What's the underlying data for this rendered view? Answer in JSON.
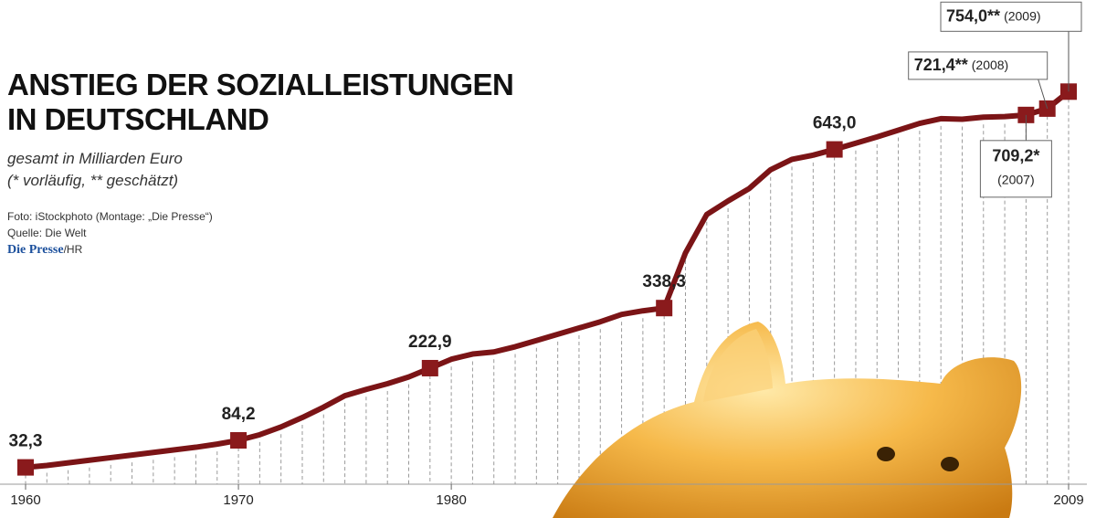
{
  "chart_data": {
    "type": "line",
    "title": [
      "ANSTIEG DER SOZIALLEISTUNGEN",
      "IN DEUTSCHLAND"
    ],
    "subtitle": [
      "gesamt in Milliarden Euro",
      "(* vorläufig, ** geschätzt)"
    ],
    "credits": [
      "Foto: iStockphoto (Montage: „Die Presse“)",
      "Quelle: Die Welt"
    ],
    "brand": "Die Presse",
    "brand_suffix": "/HR",
    "x": [
      1960,
      1961,
      1962,
      1963,
      1964,
      1965,
      1966,
      1967,
      1968,
      1969,
      1970,
      1971,
      1972,
      1973,
      1974,
      1975,
      1976,
      1977,
      1978,
      1979,
      1980,
      1981,
      1982,
      1983,
      1984,
      1985,
      1986,
      1987,
      1988,
      1989,
      1990,
      1991,
      1992,
      1993,
      1994,
      1995,
      1996,
      1997,
      1998,
      1999,
      2000,
      2001,
      2002,
      2003,
      2004,
      2005,
      2006,
      2007,
      2008,
      2009
    ],
    "series": [
      {
        "color": "#7b1416",
        "values": [
          32.3,
          36,
          41,
          46,
          51,
          56,
          61,
          66,
          71,
          77,
          84.2,
          95,
          110,
          128,
          148,
          170,
          182,
          193,
          206,
          222.9,
          240,
          250,
          254,
          264,
          276,
          288,
          300,
          312,
          326,
          333,
          338.3,
          444,
          518,
          544,
          568,
          604,
          624,
          632,
          643.0,
          655,
          667,
          680,
          693,
          702,
          701,
          705,
          706,
          709.2,
          721.4,
          754.0
        ],
        "value_labels": [
          "32,3",
          null,
          null,
          null,
          null,
          null,
          null,
          null,
          null,
          null,
          "84,2",
          null,
          null,
          null,
          null,
          null,
          null,
          null,
          null,
          "222,9",
          null,
          null,
          null,
          null,
          null,
          null,
          null,
          null,
          null,
          null,
          "338,3",
          null,
          null,
          null,
          null,
          null,
          null,
          null,
          "643,0",
          null,
          null,
          null,
          null,
          null,
          null,
          null,
          null,
          "709,2*",
          "721,4**",
          "754,0**"
        ],
        "value_notes": [
          null,
          null,
          null,
          null,
          null,
          null,
          null,
          null,
          null,
          null,
          null,
          null,
          null,
          null,
          null,
          null,
          null,
          null,
          null,
          null,
          null,
          null,
          null,
          null,
          null,
          null,
          null,
          null,
          null,
          null,
          null,
          null,
          null,
          null,
          null,
          null,
          null,
          null,
          null,
          null,
          null,
          null,
          null,
          null,
          null,
          null,
          null,
          "(2007)",
          "(2008)",
          "(2009)"
        ]
      }
    ],
    "xlim": [
      1960,
      2009
    ],
    "xticks": [
      1960,
      1970,
      1980,
      2009
    ],
    "ylim": [
      0,
      930
    ],
    "grid": true
  }
}
